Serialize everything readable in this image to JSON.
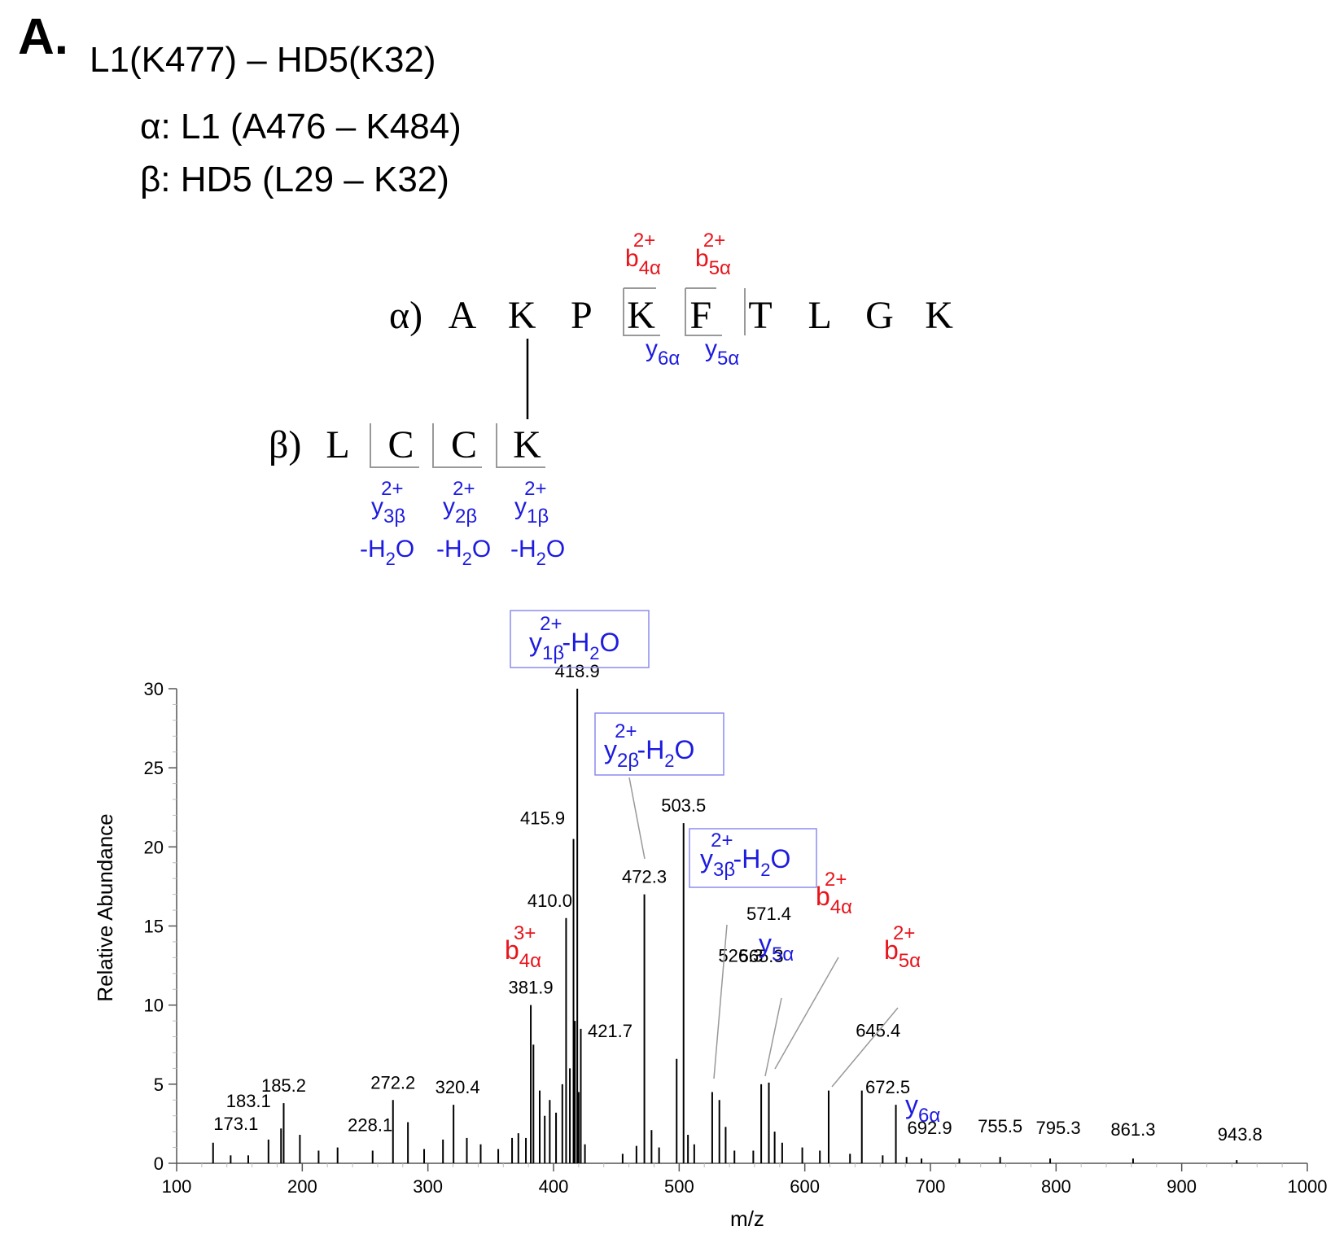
{
  "panel": {
    "letter": "A.",
    "title": "L1(K477) – HD5(K32)",
    "alpha_line": "α: L1 (A476 – K484)",
    "beta_line": "β: HD5 (L29 – K32)"
  },
  "sequence": {
    "alpha_prefix": "α)",
    "alpha_residues": [
      "A",
      "K",
      "P",
      "K",
      "F",
      "T",
      "L",
      "G",
      "K"
    ],
    "beta_prefix": "β)",
    "beta_residues": [
      "L",
      "C",
      "C",
      "K"
    ],
    "alpha_labels": [
      {
        "base": "b",
        "sub": "4α",
        "sup": "2+",
        "color": "#e8141b"
      },
      {
        "base": "b",
        "sub": "5α",
        "sup": "2+",
        "color": "#e8141b"
      },
      {
        "base": "y",
        "sub": "6α",
        "color": "#1d1be0"
      },
      {
        "base": "y",
        "sub": "5α",
        "color": "#1d1be0"
      }
    ],
    "beta_labels": [
      {
        "base": "y",
        "sub": "3β",
        "sup": "2+",
        "loss": "-H",
        "loss_sub": "2",
        "loss_tail": "O",
        "color": "#1d1be0"
      },
      {
        "base": "y",
        "sub": "2β",
        "sup": "2+",
        "loss": "-H",
        "loss_sub": "2",
        "loss_tail": "O",
        "color": "#1d1be0"
      },
      {
        "base": "y",
        "sub": "1β",
        "sup": "2+",
        "loss": "-H",
        "loss_sub": "2",
        "loss_tail": "O",
        "color": "#1d1be0"
      }
    ]
  },
  "colors": {
    "b_ion": "#e8141b",
    "y_ion": "#1d1be0",
    "box": "#8b8bf0",
    "axis": "#555555",
    "peak": "#000000"
  },
  "chart_data": {
    "type": "bar",
    "xlabel": "m/z",
    "ylabel": "Relative Abundance",
    "xlim": [
      100,
      1000
    ],
    "ylim": [
      0,
      30
    ],
    "xticks": [
      100,
      200,
      300,
      400,
      500,
      600,
      700,
      800,
      900,
      1000
    ],
    "yticks": [
      0,
      5,
      10,
      15,
      20,
      25,
      30
    ],
    "grid": false,
    "peaks": [
      {
        "mz": 173.1,
        "y": 1.5,
        "label": "173.1"
      },
      {
        "mz": 183.1,
        "y": 2.2,
        "label": "183.1"
      },
      {
        "mz": 185.2,
        "y": 3.8,
        "label": "185.2"
      },
      {
        "mz": 228.1,
        "y": 1.0,
        "label": "228.1"
      },
      {
        "mz": 272.2,
        "y": 4.0,
        "label": "272.2"
      },
      {
        "mz": 320.4,
        "y": 3.7,
        "label": "320.4"
      },
      {
        "mz": 381.9,
        "y": 10.0,
        "label": "381.9"
      },
      {
        "mz": 410.0,
        "y": 15.5,
        "label": "410.0"
      },
      {
        "mz": 415.9,
        "y": 20.5,
        "label": "415.9"
      },
      {
        "mz": 418.9,
        "y": 30.0,
        "label": "418.9"
      },
      {
        "mz": 421.7,
        "y": 8.5,
        "label": "421.7"
      },
      {
        "mz": 472.3,
        "y": 17.0,
        "label": "472.3"
      },
      {
        "mz": 503.5,
        "y": 21.5,
        "label": "503.5"
      },
      {
        "mz": 526.3,
        "y": 4.5,
        "label": "526.3"
      },
      {
        "mz": 565.3,
        "y": 5.0,
        "label": "565.3"
      },
      {
        "mz": 571.4,
        "y": 5.1,
        "label": "571.4"
      },
      {
        "mz": 645.4,
        "y": 4.6,
        "label": "645.4"
      },
      {
        "mz": 672.5,
        "y": 3.7,
        "label": "672.5"
      },
      {
        "mz": 692.9,
        "y": 0.3,
        "label": "692.9"
      },
      {
        "mz": 755.5,
        "y": 0.4,
        "label": "755.5"
      },
      {
        "mz": 795.3,
        "y": 0.3,
        "label": "795.3"
      },
      {
        "mz": 861.3,
        "y": 0.3,
        "label": "861.3"
      },
      {
        "mz": 943.8,
        "y": 0.2,
        "label": "943.8"
      }
    ],
    "unlabeled_peaks": [
      {
        "mz": 129.0,
        "y": 1.3
      },
      {
        "mz": 143.0,
        "y": 0.5
      },
      {
        "mz": 157.0,
        "y": 0.5
      },
      {
        "mz": 198.1,
        "y": 1.8
      },
      {
        "mz": 213.0,
        "y": 0.8
      },
      {
        "mz": 256.0,
        "y": 0.8
      },
      {
        "mz": 284.1,
        "y": 2.6
      },
      {
        "mz": 297.0,
        "y": 0.9
      },
      {
        "mz": 312.0,
        "y": 1.5
      },
      {
        "mz": 331.0,
        "y": 1.6
      },
      {
        "mz": 342.0,
        "y": 1.2
      },
      {
        "mz": 356.0,
        "y": 0.9
      },
      {
        "mz": 367.0,
        "y": 1.6
      },
      {
        "mz": 372.0,
        "y": 1.9
      },
      {
        "mz": 378.0,
        "y": 1.6
      },
      {
        "mz": 384.0,
        "y": 7.5
      },
      {
        "mz": 389.0,
        "y": 4.6
      },
      {
        "mz": 393.0,
        "y": 3.0
      },
      {
        "mz": 397.0,
        "y": 4.0
      },
      {
        "mz": 402.0,
        "y": 3.2
      },
      {
        "mz": 407.0,
        "y": 5.0
      },
      {
        "mz": 413.0,
        "y": 6.0
      },
      {
        "mz": 417.0,
        "y": 9.0
      },
      {
        "mz": 420.0,
        "y": 4.5
      },
      {
        "mz": 425.0,
        "y": 1.2
      },
      {
        "mz": 455.0,
        "y": 0.6
      },
      {
        "mz": 466.0,
        "y": 1.1
      },
      {
        "mz": 478.0,
        "y": 2.1
      },
      {
        "mz": 484.0,
        "y": 1.0
      },
      {
        "mz": 498.0,
        "y": 6.6
      },
      {
        "mz": 507.0,
        "y": 1.8
      },
      {
        "mz": 512.0,
        "y": 1.2
      },
      {
        "mz": 532.0,
        "y": 4.0
      },
      {
        "mz": 537.0,
        "y": 2.3
      },
      {
        "mz": 544.0,
        "y": 0.8
      },
      {
        "mz": 559.0,
        "y": 0.8
      },
      {
        "mz": 576.0,
        "y": 2.0
      },
      {
        "mz": 582.0,
        "y": 1.3
      },
      {
        "mz": 598.0,
        "y": 1.0
      },
      {
        "mz": 612.0,
        "y": 0.8
      },
      {
        "mz": 619.0,
        "y": 4.6
      },
      {
        "mz": 636.0,
        "y": 0.6
      },
      {
        "mz": 662.0,
        "y": 0.5
      },
      {
        "mz": 681.0,
        "y": 0.4
      },
      {
        "mz": 723.0,
        "y": 0.3
      }
    ],
    "annotations": [
      {
        "mz": 381.9,
        "base": "b",
        "sub": "4α",
        "sup": "3+",
        "color": "#e8141b"
      },
      {
        "mz": 418.9,
        "base": "y",
        "sub": "1β",
        "sup": "2+",
        "loss": "-H",
        "loss_sub": "2",
        "loss_tail": "O",
        "color": "#1d1be0",
        "boxed": true
      },
      {
        "mz": 472.3,
        "base": "y",
        "sub": "2β",
        "sup": "2+",
        "loss": "-H",
        "loss_sub": "2",
        "loss_tail": "O",
        "color": "#1d1be0",
        "boxed": true
      },
      {
        "mz": 526.3,
        "base": "y",
        "sub": "3β",
        "sup": "2+",
        "loss": "-H",
        "loss_sub": "2",
        "loss_tail": "O",
        "color": "#1d1be0",
        "boxed": true
      },
      {
        "mz": 565.3,
        "base": "y",
        "sub": "5α",
        "color": "#1d1be0"
      },
      {
        "mz": 571.4,
        "base": "b",
        "sub": "4α",
        "sup": "2+",
        "color": "#e8141b"
      },
      {
        "mz": 645.4,
        "base": "b",
        "sub": "5α",
        "sup": "2+",
        "color": "#e8141b"
      },
      {
        "mz": 672.5,
        "base": "y",
        "sub": "6α",
        "color": "#1d1be0"
      }
    ]
  }
}
